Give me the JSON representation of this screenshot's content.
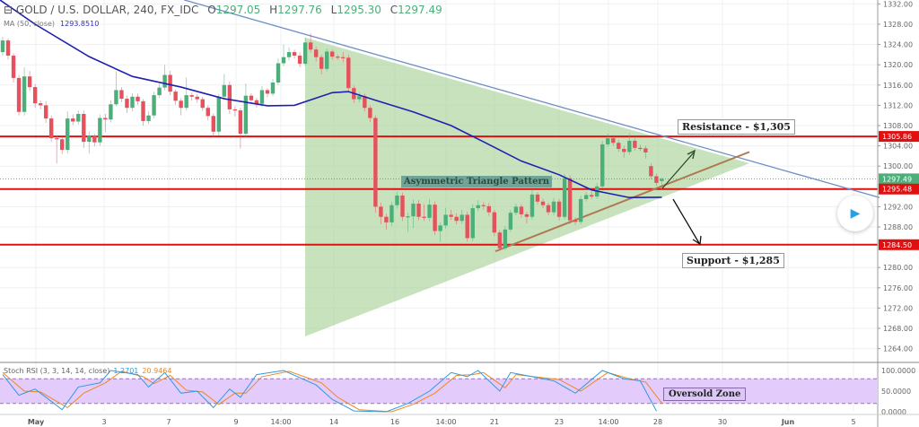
{
  "header": {
    "title": "GOLD / U.S. DOLLAR, 240, FX_IDC",
    "open_label": "O",
    "open": "1297.05",
    "high_label": "H",
    "high": "1297.76",
    "low_label": "L",
    "low": "1295.30",
    "close_label": "C",
    "close": "1297.49"
  },
  "ma": {
    "label": "MA (50, close)",
    "value": "1293.8510",
    "color": "#2020b0"
  },
  "stoch": {
    "label": "Stoch RSI (3, 3, 14, 14, close)",
    "k_value": "1.2701",
    "d_value": "20.9464",
    "k_color": "#3399dd",
    "d_color": "#ee8822",
    "fill_color": "#e3ccfb"
  },
  "annotations": {
    "triangle": "Asymmetric Triangle Pattern",
    "resistance": "Resistance - $1,305",
    "support": "Support - $1,285",
    "oversold": "Oversold Zone"
  },
  "play_icon": "play-icon",
  "chart_data": {
    "type": "candlestick",
    "title": "GOLD / U.S. DOLLAR, 240, FX_IDC",
    "ylim": [
      1262,
      1333
    ],
    "y_ticks": [
      "1332.00",
      "1328.00",
      "1324.00",
      "1320.00",
      "1316.00",
      "1312.00",
      "1308.00",
      "1304.00",
      "1300.00",
      "1292.00",
      "1288.00",
      "1280.00",
      "1276.00",
      "1272.00",
      "1268.00",
      "1264.00"
    ],
    "x_ticks": [
      "May",
      "3",
      "7",
      "9",
      "14:00",
      "14",
      "16",
      "14:00",
      "21",
      "23",
      "14:00",
      "28",
      "30",
      "Jun",
      "5"
    ],
    "price_badges": [
      {
        "label": "1305.86",
        "value": 1305.86,
        "color": "#e01010"
      },
      {
        "label": "1297.49",
        "value": 1297.49,
        "color": "#4caf7a"
      },
      {
        "label": "1295.48",
        "value": 1295.48,
        "color": "#e01010"
      },
      {
        "label": "1284.50",
        "value": 1284.5,
        "color": "#e01010"
      }
    ],
    "horizontal_levels": [
      1305.86,
      1295.48,
      1284.5
    ],
    "up_color": "#4caf7a",
    "down_color": "#e5515c",
    "candles_ohlc": [
      [
        1322.5,
        1325.5,
        1321.8,
        1324.8
      ],
      [
        1324.8,
        1325.2,
        1321,
        1321.8
      ],
      [
        1321.8,
        1322.3,
        1316.5,
        1317.4
      ],
      [
        1317.4,
        1318,
        1310,
        1310.7
      ],
      [
        1310.7,
        1319.5,
        1310,
        1317.7
      ],
      [
        1317.7,
        1318.8,
        1314.8,
        1315.6
      ],
      [
        1315.6,
        1316.2,
        1311.5,
        1312.4
      ],
      [
        1312.4,
        1313,
        1311.2,
        1312
      ],
      [
        1312,
        1312.8,
        1308.5,
        1309.4
      ],
      [
        1309.4,
        1310,
        1304.8,
        1305.5
      ],
      [
        1305.5,
        1306,
        1300.5,
        1305.3
      ],
      [
        1305.3,
        1306,
        1302.4,
        1303.2
      ],
      [
        1303.2,
        1310.8,
        1302.5,
        1309.4
      ],
      [
        1309.4,
        1310.2,
        1308.1,
        1308.8
      ],
      [
        1308.8,
        1311,
        1308.2,
        1310.3
      ],
      [
        1310.3,
        1311,
        1303.6,
        1304.8
      ],
      [
        1304.8,
        1306.8,
        1302.5,
        1306
      ],
      [
        1306,
        1306.4,
        1303.9,
        1304.7
      ],
      [
        1304.7,
        1310.2,
        1304,
        1309.5
      ],
      [
        1309.5,
        1310.3,
        1306.7,
        1309.2
      ],
      [
        1309.2,
        1313,
        1308.6,
        1312.2
      ],
      [
        1312.2,
        1318.7,
        1311.8,
        1315
      ],
      [
        1315,
        1315.6,
        1312.6,
        1313.3
      ],
      [
        1313.3,
        1313.9,
        1310.5,
        1311.5
      ],
      [
        1311.5,
        1314.4,
        1310.8,
        1313.7
      ],
      [
        1313.7,
        1314.3,
        1312.1,
        1312.8
      ],
      [
        1312.8,
        1313.2,
        1308,
        1308.9
      ],
      [
        1308.9,
        1310.8,
        1308.3,
        1310
      ],
      [
        1310,
        1314.7,
        1309.5,
        1314
      ],
      [
        1314,
        1316.2,
        1313.5,
        1315.5
      ],
      [
        1315.5,
        1320,
        1315,
        1318
      ],
      [
        1318,
        1318.8,
        1314,
        1314.7
      ],
      [
        1314.7,
        1315.1,
        1312.1,
        1312.9
      ],
      [
        1312.9,
        1313.4,
        1310,
        1311.5
      ],
      [
        1311.5,
        1317.5,
        1311,
        1314
      ],
      [
        1314,
        1314.5,
        1312.9,
        1313.7
      ],
      [
        1313.7,
        1314.2,
        1312.5,
        1313.2
      ],
      [
        1313.2,
        1313.7,
        1310.9,
        1311.5
      ],
      [
        1311.5,
        1312,
        1309,
        1309.9
      ],
      [
        1309.9,
        1310.4,
        1305.7,
        1306.8
      ],
      [
        1306.8,
        1314.3,
        1306,
        1313.7
      ],
      [
        1313.7,
        1318.2,
        1313.1,
        1316
      ],
      [
        1316,
        1316.7,
        1310.3,
        1311.2
      ],
      [
        1311.2,
        1311.8,
        1309.8,
        1311
      ],
      [
        1311,
        1311.5,
        1303.5,
        1306.4
      ],
      [
        1306.4,
        1316.3,
        1305.6,
        1313.9
      ],
      [
        1313.9,
        1314.4,
        1312.2,
        1313
      ],
      [
        1313,
        1313.5,
        1311.5,
        1312.3
      ],
      [
        1312.3,
        1315.8,
        1311.7,
        1315
      ],
      [
        1315,
        1315.4,
        1313.6,
        1314.3
      ],
      [
        1314.3,
        1317.2,
        1313.8,
        1316.5
      ],
      [
        1316.5,
        1321.2,
        1316,
        1320.3
      ],
      [
        1320.3,
        1324,
        1319.7,
        1321.5
      ],
      [
        1321.5,
        1323.4,
        1320.9,
        1322.5
      ],
      [
        1322.5,
        1323,
        1321.2,
        1321.8
      ],
      [
        1321.8,
        1322.4,
        1319.5,
        1320.2
      ],
      [
        1320.2,
        1325.4,
        1319.8,
        1324.4
      ],
      [
        1324.4,
        1326.2,
        1322.4,
        1323
      ],
      [
        1323,
        1323.6,
        1320.6,
        1321.5
      ],
      [
        1321.5,
        1322,
        1318.1,
        1319.2
      ],
      [
        1319.2,
        1323.2,
        1318.7,
        1322.6
      ],
      [
        1322.6,
        1323,
        1321,
        1321.6
      ],
      [
        1321.6,
        1322,
        1321,
        1321.5
      ],
      [
        1321.5,
        1322.5,
        1320.5,
        1321.4
      ],
      [
        1321.4,
        1322,
        1314.8,
        1315.4
      ],
      [
        1315.4,
        1315.9,
        1312.4,
        1313.2
      ],
      [
        1313.2,
        1314.5,
        1312.6,
        1313.8
      ],
      [
        1313.8,
        1314.3,
        1310.8,
        1311.5
      ],
      [
        1311.5,
        1312,
        1308.7,
        1309.5
      ],
      [
        1309.5,
        1310,
        1290.8,
        1292
      ],
      [
        1292,
        1292.8,
        1288.5,
        1290
      ],
      [
        1290,
        1290.6,
        1287.5,
        1288.9
      ],
      [
        1288.9,
        1293,
        1288.2,
        1292.3
      ],
      [
        1292.3,
        1295,
        1291.6,
        1294.2
      ],
      [
        1294.2,
        1294.8,
        1289.2,
        1290
      ],
      [
        1290,
        1290.8,
        1287,
        1290.1
      ],
      [
        1290.1,
        1293.4,
        1287.8,
        1292.6
      ],
      [
        1292.6,
        1293.3,
        1289.3,
        1290
      ],
      [
        1290,
        1292.5,
        1289.2,
        1289.8
      ],
      [
        1289.8,
        1293.5,
        1289.2,
        1292.4
      ],
      [
        1292.4,
        1293,
        1286.4,
        1287.2
      ],
      [
        1287.2,
        1288.9,
        1285,
        1288.3
      ],
      [
        1288.3,
        1291.8,
        1287.7,
        1290.4
      ],
      [
        1290.4,
        1291.4,
        1289.4,
        1290
      ],
      [
        1290,
        1290.7,
        1288.5,
        1289.2
      ],
      [
        1289.2,
        1291.4,
        1288.6,
        1290.4
      ],
      [
        1290.4,
        1291,
        1285.1,
        1285.8
      ],
      [
        1285.8,
        1292.5,
        1285.2,
        1291.7
      ],
      [
        1291.7,
        1293.3,
        1291.1,
        1292.3
      ],
      [
        1292.3,
        1292.9,
        1291.4,
        1292.1
      ],
      [
        1292.1,
        1292.7,
        1290.2,
        1290.9
      ],
      [
        1290.9,
        1291.4,
        1286.2,
        1286.9
      ],
      [
        1286.9,
        1287.4,
        1283.3,
        1283.8
      ],
      [
        1283.8,
        1288.2,
        1283.4,
        1287.5
      ],
      [
        1287.5,
        1291.4,
        1287,
        1290.8
      ],
      [
        1290.8,
        1292.6,
        1290.3,
        1292
      ],
      [
        1292,
        1292.5,
        1289.8,
        1290.5
      ],
      [
        1290.5,
        1291,
        1288.7,
        1290
      ],
      [
        1290,
        1295.4,
        1289.4,
        1294.4
      ],
      [
        1294.4,
        1294.9,
        1292.4,
        1293
      ],
      [
        1293,
        1293.6,
        1291.7,
        1292.3
      ],
      [
        1292.3,
        1292.8,
        1290.3,
        1290.9
      ],
      [
        1290.9,
        1293.7,
        1290.3,
        1293
      ],
      [
        1293,
        1293.5,
        1289.3,
        1290
      ],
      [
        1290,
        1298.4,
        1289.5,
        1297.6
      ],
      [
        1297.6,
        1298.2,
        1288.6,
        1289.3
      ],
      [
        1289.3,
        1289.9,
        1288.4,
        1289
      ],
      [
        1289,
        1294.2,
        1288.5,
        1293.5
      ],
      [
        1293.5,
        1294.9,
        1293,
        1294.3
      ],
      [
        1294.3,
        1295,
        1293.5,
        1294
      ],
      [
        1294,
        1296.7,
        1293.5,
        1296
      ],
      [
        1296,
        1305,
        1295.6,
        1304.3
      ],
      [
        1304.3,
        1306.4,
        1303.8,
        1305.5
      ],
      [
        1305.5,
        1306.2,
        1304,
        1304.6
      ],
      [
        1304.6,
        1305.2,
        1302.8,
        1303.4
      ],
      [
        1303.4,
        1304,
        1301.7,
        1302.8
      ],
      [
        1302.8,
        1306.5,
        1302.2,
        1305
      ],
      [
        1305,
        1305.6,
        1303,
        1303.6
      ],
      [
        1303.6,
        1304.2,
        1303,
        1303.5
      ],
      [
        1303.5,
        1304,
        1301.5,
        1302.7
      ],
      [
        1300,
        1300.6,
        1297.4,
        1298
      ],
      [
        1298,
        1298.5,
        1296.1,
        1296.7
      ],
      [
        1297.05,
        1297.76,
        1295.3,
        1297.49
      ]
    ],
    "ma_50": [
      [
        6,
        1328
      ],
      [
        16,
        1321.6
      ],
      [
        24,
        1317.7
      ],
      [
        33,
        1315.6
      ],
      [
        41,
        1313.3
      ],
      [
        49,
        1311.9
      ],
      [
        54,
        1312
      ],
      [
        61,
        1314.5
      ],
      [
        64,
        1314.7
      ],
      [
        69,
        1313
      ],
      [
        76,
        1310.7
      ],
      [
        83,
        1308
      ],
      [
        89,
        1304.8
      ],
      [
        96,
        1301
      ],
      [
        103,
        1298.3
      ],
      [
        109,
        1295.3
      ],
      [
        116,
        1293.8
      ],
      [
        122,
        1293.85
      ]
    ],
    "descending_trendline": [
      [
        34,
        1332.8
      ],
      [
        162,
        1293.8
      ]
    ],
    "ascending_trendline": [
      [
        91,
        1283.2
      ],
      [
        138,
        1302.8
      ]
    ],
    "stoch_rsi": {
      "ylim": [
        0,
        100
      ],
      "y_ticks": [
        "100.0000",
        "50.0000",
        "0.0000"
      ],
      "bands": [
        20,
        80
      ],
      "k": [
        [
          0,
          90
        ],
        [
          3,
          40
        ],
        [
          6,
          55
        ],
        [
          11,
          5
        ],
        [
          14,
          60
        ],
        [
          18,
          70
        ],
        [
          20,
          100
        ],
        [
          25,
          90
        ],
        [
          27,
          60
        ],
        [
          30,
          95
        ],
        [
          33,
          45
        ],
        [
          36,
          50
        ],
        [
          39,
          10
        ],
        [
          42,
          55
        ],
        [
          44,
          35
        ],
        [
          47,
          90
        ],
        [
          52,
          100
        ],
        [
          58,
          65
        ],
        [
          61,
          30
        ],
        [
          65,
          2
        ],
        [
          71,
          0
        ],
        [
          75,
          20
        ],
        [
          79,
          50
        ],
        [
          83,
          95
        ],
        [
          86,
          85
        ],
        [
          88,
          100
        ],
        [
          92,
          50
        ],
        [
          94,
          95
        ],
        [
          102,
          75
        ],
        [
          106,
          45
        ],
        [
          111,
          100
        ],
        [
          115,
          80
        ],
        [
          118,
          75
        ],
        [
          121,
          2
        ]
      ],
      "d": [
        [
          0,
          95
        ],
        [
          4,
          50
        ],
        [
          7,
          48
        ],
        [
          12,
          10
        ],
        [
          15,
          45
        ],
        [
          19,
          70
        ],
        [
          22,
          98
        ],
        [
          26,
          85
        ],
        [
          28,
          68
        ],
        [
          31,
          88
        ],
        [
          34,
          52
        ],
        [
          37,
          48
        ],
        [
          40,
          18
        ],
        [
          43,
          45
        ],
        [
          45,
          45
        ],
        [
          48,
          85
        ],
        [
          53,
          98
        ],
        [
          59,
          70
        ],
        [
          62,
          35
        ],
        [
          66,
          5
        ],
        [
          72,
          0
        ],
        [
          76,
          18
        ],
        [
          80,
          45
        ],
        [
          84,
          88
        ],
        [
          87,
          90
        ],
        [
          89,
          95
        ],
        [
          93,
          58
        ],
        [
          95,
          90
        ],
        [
          103,
          78
        ],
        [
          107,
          50
        ],
        [
          112,
          95
        ],
        [
          116,
          80
        ],
        [
          119,
          72
        ],
        [
          122,
          21
        ]
      ]
    }
  }
}
